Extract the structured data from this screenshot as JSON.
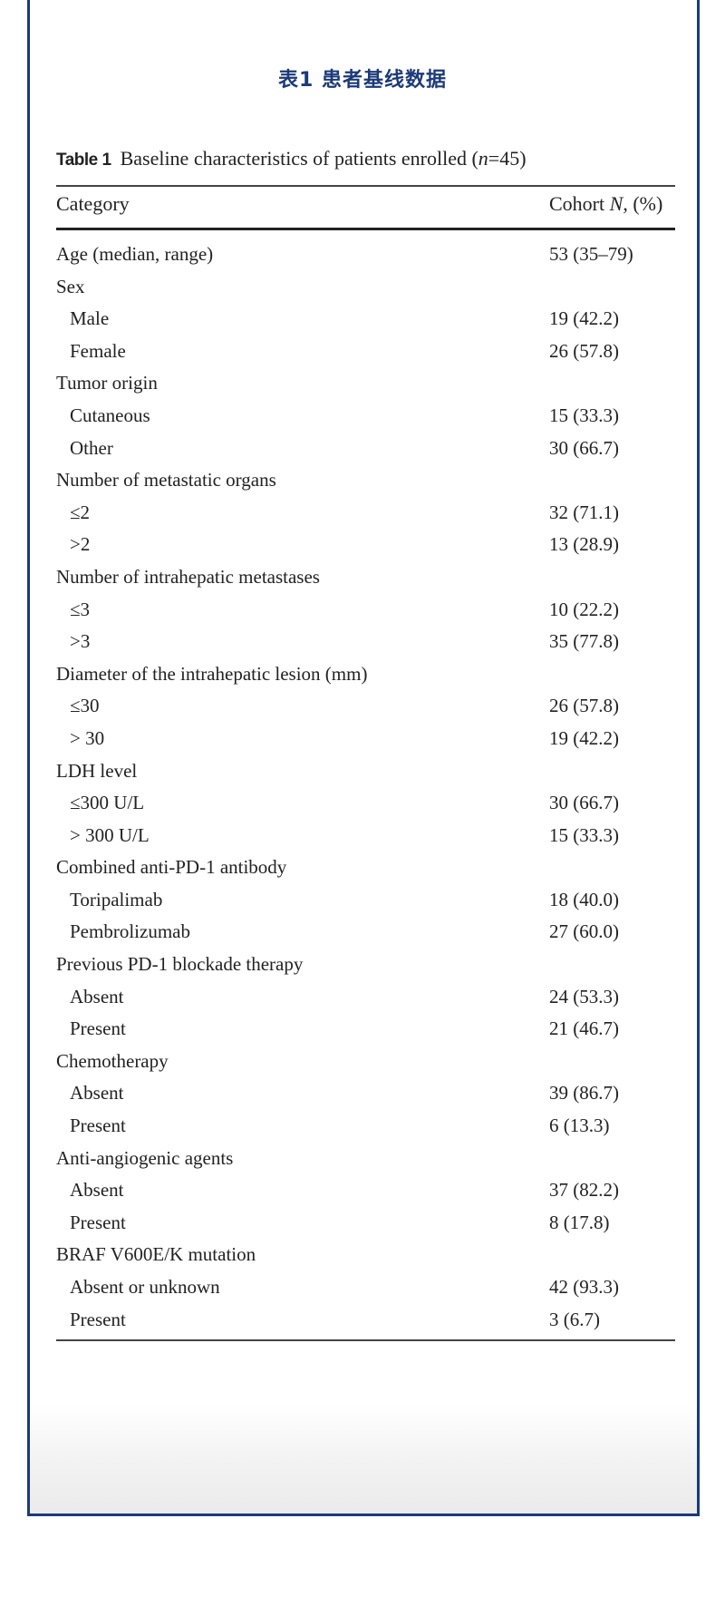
{
  "title": "表1  患者基线数据",
  "caption": {
    "label": "Table 1",
    "text": "Baseline characteristics of patients enrolled (",
    "n_var": "n",
    "n_rest": "=45)"
  },
  "header": {
    "category": "Category",
    "cohort_prefix": "Cohort ",
    "cohort_var": "N",
    "cohort_suffix": ", (%)"
  },
  "rows": [
    {
      "category": "Age (median, range)",
      "value": "53 (35–79)",
      "sub": false
    },
    {
      "category": "Sex",
      "value": "",
      "sub": false
    },
    {
      "category": "Male",
      "value": "19 (42.2)",
      "sub": true
    },
    {
      "category": "Female",
      "value": "26 (57.8)",
      "sub": true
    },
    {
      "category": "Tumor origin",
      "value": "",
      "sub": false
    },
    {
      "category": "Cutaneous",
      "value": "15 (33.3)",
      "sub": true
    },
    {
      "category": "Other",
      "value": "30 (66.7)",
      "sub": true
    },
    {
      "category": "Number of metastatic organs",
      "value": "",
      "sub": false
    },
    {
      "category": "≤2",
      "value": "32 (71.1)",
      "sub": true
    },
    {
      "category": ">2",
      "value": "13 (28.9)",
      "sub": true
    },
    {
      "category": "Number of intrahepatic metastases",
      "value": "",
      "sub": false
    },
    {
      "category": "≤3",
      "value": "10 (22.2)",
      "sub": true
    },
    {
      "category": ">3",
      "value": "35 (77.8)",
      "sub": true
    },
    {
      "category": "Diameter of the intrahepatic lesion (mm)",
      "value": "",
      "sub": false
    },
    {
      "category": "≤30",
      "value": "26 (57.8)",
      "sub": true
    },
    {
      "category": "> 30",
      "value": "19 (42.2)",
      "sub": true
    },
    {
      "category": "LDH level",
      "value": "",
      "sub": false
    },
    {
      "category": "≤300 U/L",
      "value": "30 (66.7)",
      "sub": true
    },
    {
      "category": "> 300 U/L",
      "value": "15 (33.3)",
      "sub": true
    },
    {
      "category": "Combined anti-PD-1 antibody",
      "value": "",
      "sub": false
    },
    {
      "category": "Toripalimab",
      "value": "18 (40.0)",
      "sub": true
    },
    {
      "category": "Pembrolizumab",
      "value": "27 (60.0)",
      "sub": true
    },
    {
      "category": "Previous PD-1 blockade therapy",
      "value": "",
      "sub": false
    },
    {
      "category": "Absent",
      "value": "24 (53.3)",
      "sub": true
    },
    {
      "category": "Present",
      "value": "21 (46.7)",
      "sub": true
    },
    {
      "category": "Chemotherapy",
      "value": "",
      "sub": false
    },
    {
      "category": "Absent",
      "value": "39 (86.7)",
      "sub": true
    },
    {
      "category": "Present",
      "value": "6 (13.3)",
      "sub": true
    },
    {
      "category": "Anti-angiogenic agents",
      "value": "",
      "sub": false
    },
    {
      "category": "Absent",
      "value": "37 (82.2)",
      "sub": true
    },
    {
      "category": "Present",
      "value": "8 (17.8)",
      "sub": true
    },
    {
      "category": "BRAF V600E/K mutation",
      "value": "",
      "sub": false
    },
    {
      "category": "Absent or unknown",
      "value": "42 (93.3)",
      "sub": true
    },
    {
      "category": "Present",
      "value": "3 (6.7)",
      "sub": true
    }
  ]
}
